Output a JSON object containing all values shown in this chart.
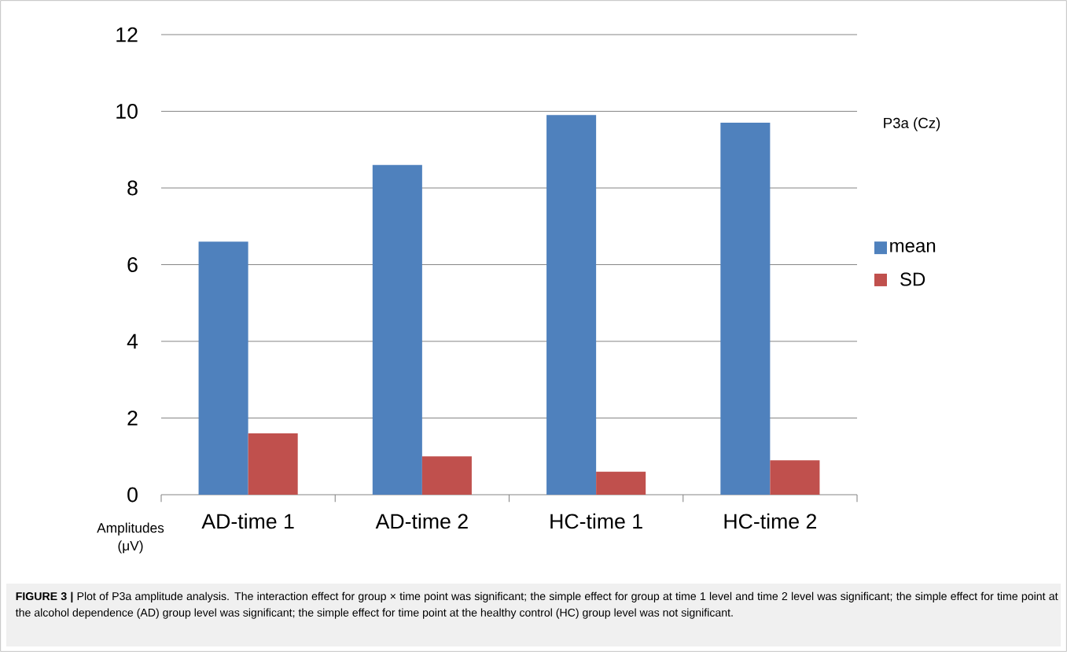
{
  "chart_data": {
    "type": "bar",
    "categories": [
      "AD-time 1",
      "AD-time 2",
      "HC-time 1",
      "HC-time 2"
    ],
    "series": [
      {
        "name": "mean",
        "color": "#4f81bd",
        "values": [
          6.6,
          8.6,
          9.9,
          9.7
        ]
      },
      {
        "name": "SD",
        "color": "#c0504d",
        "values": [
          1.6,
          1.0,
          0.6,
          0.9
        ]
      }
    ],
    "ylim": [
      0,
      12
    ],
    "yticks": [
      0,
      2,
      4,
      6,
      8,
      10,
      12
    ],
    "grid": "y",
    "legend": "right",
    "ylabel": "Amplitudes (μV)",
    "annotations": [
      "P3a (Cz)",
      "**FIGURE 3 |** Plot of P3a amplitude analysis. The interaction effect for group × time point was significant; the simple effect for group at time 1 level and time 2 level was significant; the simple effect for time point at the alcohol dependence (AD) group level was significant; the simple effect for time point at the healthy control (HC) group level was not significant."
    ]
  }
}
